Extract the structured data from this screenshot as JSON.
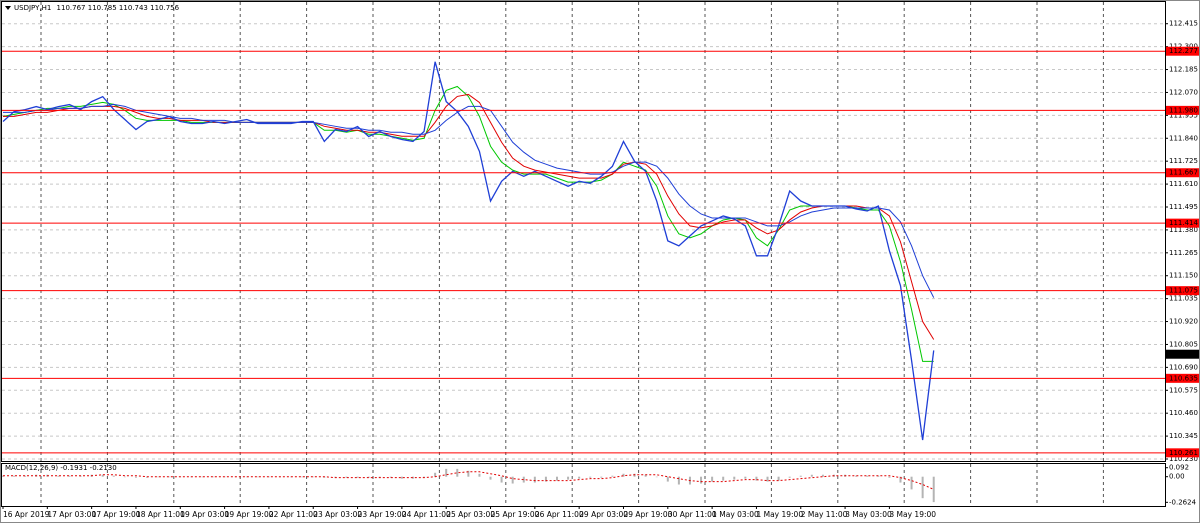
{
  "chart_data": [
    {
      "type": "line",
      "symbol": "USDJPY,H1",
      "ohlc": [
        110.767,
        110.785,
        110.743,
        110.756
      ],
      "last": 110.756,
      "categories": [
        "16 Apr 2019",
        null,
        null,
        null,
        "17 Apr 03:00",
        null,
        null,
        null,
        "17 Apr 19:00",
        null,
        null,
        null,
        "18 Apr 11:00",
        null,
        null,
        null,
        "19 Apr 03:00",
        null,
        null,
        null,
        "19 Apr 19:00",
        null,
        null,
        null,
        "22 Apr 11:00",
        null,
        null,
        null,
        "23 Apr 03:00",
        null,
        null,
        null,
        "23 Apr 19:00",
        null,
        null,
        null,
        "24 Apr 11:00",
        null,
        null,
        null,
        "25 Apr 03:00",
        null,
        null,
        null,
        "25 Apr 19:00",
        null,
        null,
        null,
        "26 Apr 11:00",
        null,
        null,
        null,
        "29 Apr 03:00",
        null,
        null,
        null,
        "29 Apr 19:00",
        null,
        null,
        null,
        "30 Apr 11:00",
        null,
        null,
        null,
        "1 May 03:00",
        null,
        null,
        null,
        "1 May 19:00",
        null,
        null,
        null,
        "2 May 11:00",
        null,
        null,
        null,
        "3 May 03:00",
        null,
        null,
        null,
        "3 May 19:00",
        null,
        null,
        null,
        null
      ],
      "series": [
        {
          "color": "#1f3fd6",
          "values": [
            111.924,
            111.974,
            111.984,
            111.999,
            111.984,
            111.999,
            112.009,
            111.984,
            112.024,
            112.049,
            111.984,
            111.934,
            111.884,
            111.924,
            111.934,
            111.949,
            111.924,
            111.914,
            111.914,
            111.924,
            111.914,
            111.924,
            111.934,
            111.914,
            111.914,
            111.914,
            111.914,
            111.924,
            111.924,
            111.824,
            111.884,
            111.874,
            111.899,
            111.849,
            111.874,
            111.849,
            111.834,
            111.824,
            111.874,
            112.224,
            112.024,
            111.974,
            111.899,
            111.774,
            111.525,
            111.624,
            111.674,
            111.649,
            111.674,
            111.649,
            111.624,
            111.599,
            111.624,
            111.614,
            111.649,
            111.699,
            111.824,
            111.724,
            111.674,
            111.525,
            111.325,
            111.3,
            111.35,
            111.4,
            111.425,
            111.45,
            111.435,
            111.4,
            111.25,
            111.25,
            111.4,
            111.575,
            111.525,
            111.5,
            111.5,
            111.5,
            111.5,
            111.485,
            111.475,
            111.5,
            111.275,
            111.1,
            110.725,
            110.325,
            110.775
          ]
        },
        {
          "color": "#00c800",
          "values": [
            111.95,
            111.96,
            111.97,
            111.98,
            111.99,
            111.99,
            112.0,
            112.0,
            112.01,
            112.02,
            112.01,
            111.98,
            111.94,
            111.93,
            111.93,
            111.93,
            111.93,
            111.92,
            111.92,
            111.92,
            111.92,
            111.92,
            111.92,
            111.92,
            111.92,
            111.92,
            111.92,
            111.92,
            111.92,
            111.88,
            111.88,
            111.87,
            111.88,
            111.86,
            111.86,
            111.85,
            111.84,
            111.83,
            111.84,
            111.98,
            112.08,
            112.1,
            112.05,
            111.95,
            111.8,
            111.72,
            111.68,
            111.66,
            111.66,
            111.66,
            111.64,
            111.62,
            111.62,
            111.62,
            111.63,
            111.66,
            111.72,
            111.7,
            111.68,
            111.6,
            111.45,
            111.36,
            111.34,
            111.36,
            111.4,
            111.43,
            111.44,
            111.43,
            111.34,
            111.3,
            111.38,
            111.48,
            111.5,
            111.5,
            111.5,
            111.5,
            111.5,
            111.49,
            111.48,
            111.48,
            111.4,
            111.22,
            110.98,
            110.72,
            110.72
          ]
        },
        {
          "color": "#e00000",
          "values": [
            111.95,
            111.95,
            111.96,
            111.97,
            111.97,
            111.98,
            111.99,
            111.99,
            112.0,
            112.0,
            112.0,
            111.99,
            111.97,
            111.95,
            111.94,
            111.94,
            111.93,
            111.93,
            111.93,
            111.92,
            111.92,
            111.92,
            111.92,
            111.92,
            111.92,
            111.92,
            111.92,
            111.92,
            111.92,
            111.9,
            111.89,
            111.88,
            111.88,
            111.87,
            111.87,
            111.86,
            111.85,
            111.85,
            111.85,
            111.92,
            112.0,
            112.05,
            112.06,
            112.02,
            111.92,
            111.82,
            111.74,
            111.7,
            111.68,
            111.67,
            111.66,
            111.65,
            111.64,
            111.64,
            111.64,
            111.66,
            111.71,
            111.72,
            111.71,
            111.66,
            111.55,
            111.46,
            111.4,
            111.39,
            111.4,
            111.42,
            111.43,
            111.43,
            111.39,
            111.36,
            111.38,
            111.43,
            111.47,
            111.49,
            111.5,
            111.5,
            111.5,
            111.5,
            111.49,
            111.49,
            111.45,
            111.32,
            111.12,
            110.92,
            110.83
          ]
        },
        {
          "color": "#1f3fd6",
          "values": [
            111.97,
            111.97,
            111.97,
            111.98,
            111.98,
            111.99,
            111.99,
            111.99,
            112.0,
            112.0,
            112.01,
            112.0,
            111.98,
            111.97,
            111.96,
            111.95,
            111.94,
            111.94,
            111.93,
            111.93,
            111.93,
            111.92,
            111.92,
            111.92,
            111.92,
            111.92,
            111.92,
            111.92,
            111.92,
            111.91,
            111.9,
            111.89,
            111.89,
            111.88,
            111.88,
            111.87,
            111.87,
            111.86,
            111.86,
            111.88,
            111.93,
            111.97,
            112.0,
            112.0,
            111.98,
            111.9,
            111.82,
            111.77,
            111.73,
            111.71,
            111.69,
            111.68,
            111.67,
            111.66,
            111.66,
            111.67,
            111.7,
            111.72,
            111.72,
            111.7,
            111.64,
            111.56,
            111.5,
            111.46,
            111.44,
            111.44,
            111.44,
            111.44,
            111.42,
            111.4,
            111.4,
            111.42,
            111.45,
            111.47,
            111.48,
            111.49,
            111.49,
            111.49,
            111.49,
            111.49,
            111.48,
            111.42,
            111.3,
            111.15,
            111.04
          ]
        }
      ],
      "levels": [
        112.277,
        {
          "value": 111.98,
          "label": "111.980"
        },
        111.667,
        111.414,
        111.075,
        110.635,
        110.261
      ],
      "level_color": "#ff0000",
      "ylim": [
        110.22,
        112.524
      ],
      "yticks": [
        112.415,
        {
          "value": 112.3,
          "label": "112.300"
        },
        112.185,
        {
          "value": 112.07,
          "label": "112.070"
        },
        111.955,
        {
          "value": 111.84,
          "label": "111.840"
        },
        111.725,
        {
          "value": 111.61,
          "label": "111.610"
        },
        111.495,
        {
          "value": 111.38,
          "label": "111.380"
        },
        111.265,
        {
          "value": 111.15,
          "label": "111.150"
        },
        111.035,
        {
          "value": 110.92,
          "label": "110.920"
        },
        110.805,
        {
          "value": 110.69,
          "label": "110.690"
        },
        110.575,
        {
          "value": 110.46,
          "label": "110.460"
        },
        110.345,
        {
          "value": 110.23,
          "label": "110.230"
        }
      ],
      "grid": true
    },
    {
      "type": "bar",
      "title": "MACD(12,26,9)",
      "readings": [
        -0.1931,
        {
          "value": -0.213,
          "label": "-0.2130"
        }
      ],
      "series": [
        {
          "color": "#b4b4b4",
          "values": [
            0.01,
            0.01,
            0.01,
            0.02,
            0.02,
            0.01,
            0.01,
            0.01,
            0.02,
            0.02,
            0.01,
            0,
            -0.01,
            -0.01,
            0,
            0,
            0,
            0,
            0,
            0,
            0,
            0,
            0,
            0,
            0,
            0,
            0,
            0,
            0,
            -0.01,
            -0.01,
            -0.01,
            -0.01,
            -0.01,
            -0.01,
            -0.01,
            -0.02,
            -0.02,
            -0.01,
            0.04,
            0.08,
            0.08,
            0.06,
            0.03,
            -0.03,
            -0.06,
            -0.07,
            -0.06,
            -0.06,
            -0.05,
            -0.04,
            -0.03,
            -0.02,
            -0.01,
            -0.01,
            0.01,
            0.03,
            0.03,
            0.02,
            0,
            -0.05,
            -0.08,
            -0.08,
            -0.07,
            -0.05,
            -0.04,
            -0.03,
            -0.02,
            -0.04,
            -0.05,
            -0.04,
            -0.01,
            0.01,
            0.02,
            0.02,
            0.02,
            0.02,
            0.01,
            0.01,
            0.01,
            -0.01,
            -0.06,
            -0.13,
            -0.22,
            -0.26
          ]
        },
        {
          "color": "#e00000",
          "values": [
            0.01,
            0.01,
            0.01,
            0.01,
            0.01,
            0.01,
            0.01,
            0.01,
            0.01,
            0.02,
            0.02,
            0.01,
            0.01,
            0,
            0,
            0,
            0,
            0,
            0,
            0,
            0,
            0,
            0,
            0,
            0,
            0,
            0,
            0,
            0,
            0,
            -0.01,
            -0.01,
            -0.01,
            -0.01,
            -0.01,
            -0.01,
            -0.01,
            -0.01,
            -0.01,
            0,
            0.02,
            0.04,
            0.05,
            0.05,
            0.03,
            0.01,
            -0.02,
            -0.03,
            -0.04,
            -0.04,
            -0.04,
            -0.04,
            -0.03,
            -0.02,
            -0.02,
            -0.01,
            0.01,
            0.02,
            0.02,
            0.02,
            0,
            -0.02,
            -0.04,
            -0.05,
            -0.05,
            -0.05,
            -0.04,
            -0.03,
            -0.03,
            -0.04,
            -0.04,
            -0.03,
            -0.02,
            -0.01,
            0,
            0.01,
            0.01,
            0.01,
            0.01,
            0.01,
            0.01,
            -0.01,
            -0.04,
            -0.08,
            -0.13
          ]
        }
      ],
      "ylim": [
        -0.3,
        0.13
      ],
      "yticks": [
        0.092,
        {
          "value": 0,
          "label": "0.00"
        },
        -0.2624
      ]
    }
  ]
}
